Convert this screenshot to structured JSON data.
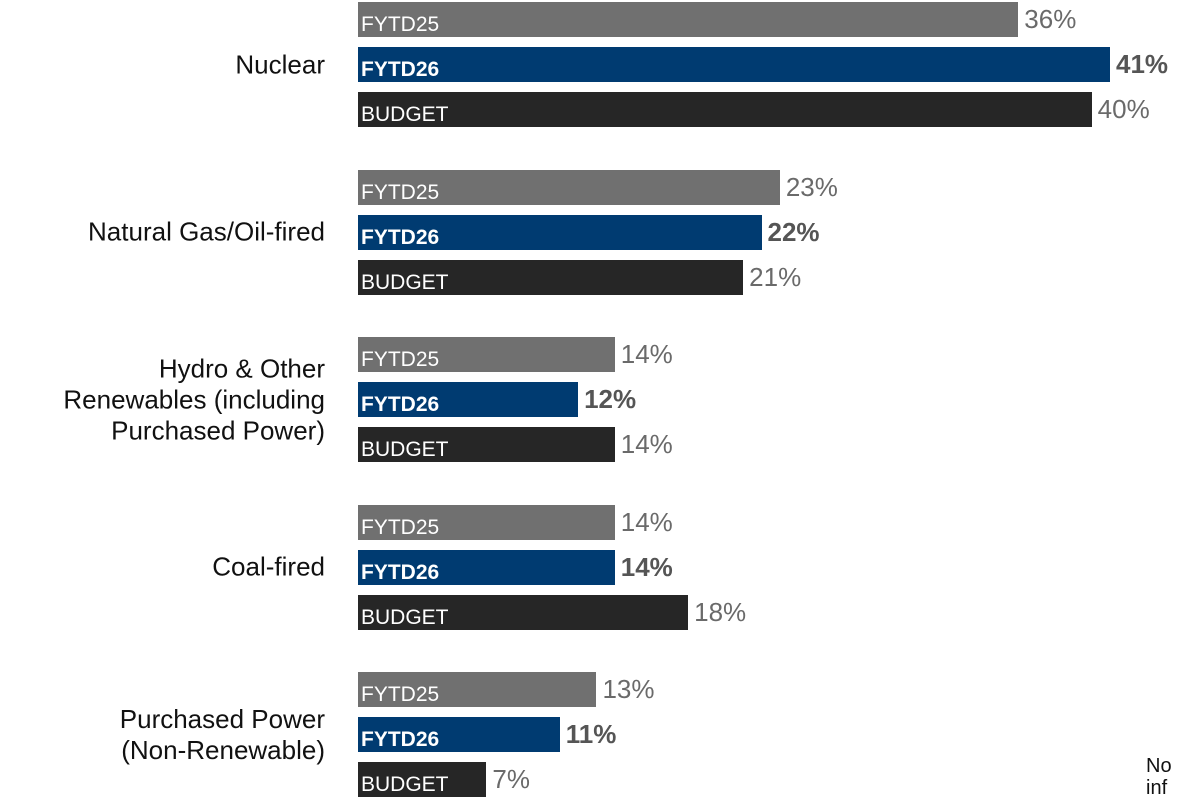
{
  "chart_data": {
    "type": "bar",
    "orientation": "horizontal",
    "categories": [
      "Nuclear",
      "Natural Gas/Oil-fired",
      "Hydro & Other\nRenewables (including\nPurchased Power)",
      "Coal-fired",
      "Purchased Power\n(Non-Renewable)"
    ],
    "series": [
      {
        "name": "FYTD25",
        "color": "#707070",
        "values": [
          36,
          23,
          14,
          14,
          13
        ],
        "value_labels": [
          "36%",
          "23%",
          "14%",
          "14%",
          "13%"
        ]
      },
      {
        "name": "FYTD26",
        "color": "#003b71",
        "values": [
          41,
          22,
          12,
          14,
          11
        ],
        "value_labels": [
          "41%",
          "22%",
          "12%",
          "14%",
          "11%"
        ]
      },
      {
        "name": "BUDGET",
        "color": "#262626",
        "values": [
          40,
          21,
          14,
          18,
          7
        ],
        "value_labels": [
          "40%",
          "21%",
          "14%",
          "18%",
          "7%"
        ]
      }
    ],
    "annotations": [
      "No",
      "inf"
    ]
  }
}
